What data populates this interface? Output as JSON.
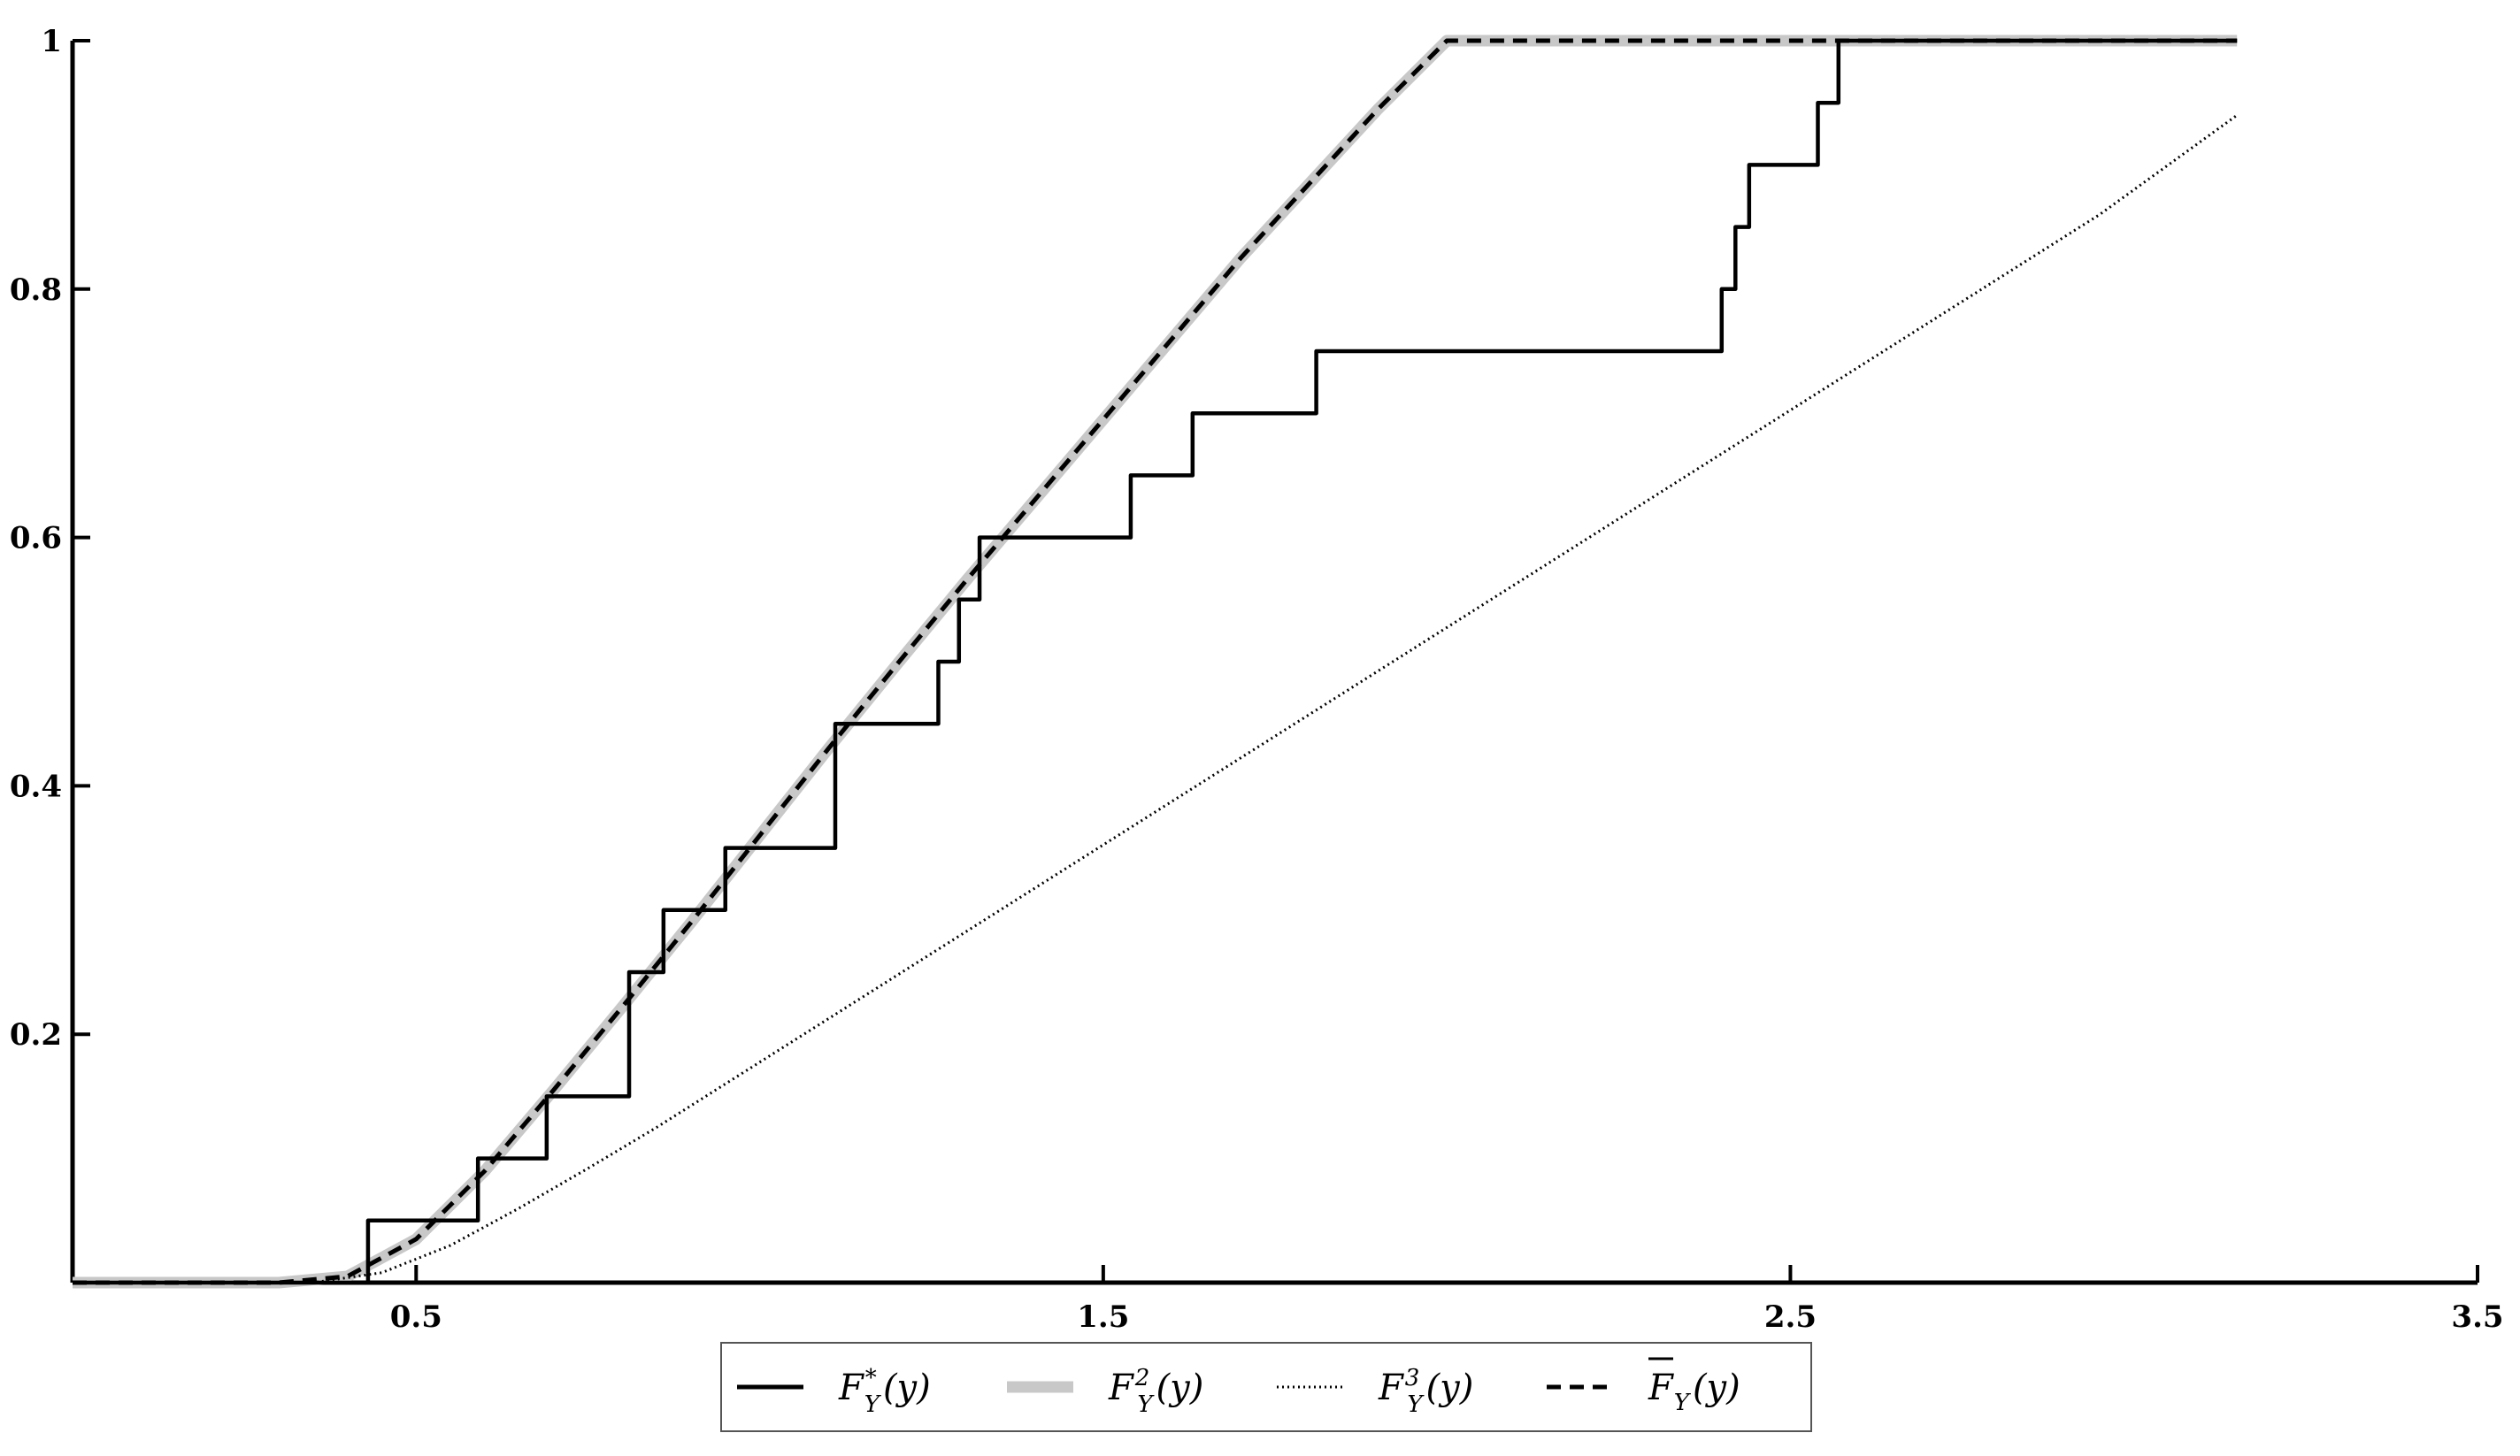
{
  "chart_data": {
    "type": "line",
    "xlim": [
      0,
      3.5
    ],
    "ylim": [
      0,
      1
    ],
    "x_ticks": [
      0.5,
      1.5,
      2.5,
      3.5
    ],
    "x_tick_labels": [
      "0.5",
      "1.5",
      "2.5",
      "3.5"
    ],
    "y_ticks": [
      0.2,
      0.4,
      0.6,
      0.8,
      1
    ],
    "y_tick_labels": [
      "0.2",
      "0.4",
      "0.6",
      "0.8",
      "1"
    ],
    "grid": false,
    "legend_position": "bottom-center",
    "series": [
      {
        "name": "F*_Y(y)",
        "style": "step",
        "color": "#000000",
        "x": [
          0,
          0.43,
          0.59,
          0.69,
          0.81,
          0.86,
          0.95,
          1.11,
          1.26,
          1.29,
          1.32,
          1.34,
          1.54,
          1.63,
          1.81,
          2.4,
          2.42,
          2.44,
          2.54,
          2.57,
          3.15
        ],
        "y": [
          0,
          0.05,
          0.1,
          0.15,
          0.25,
          0.3,
          0.35,
          0.45,
          0.5,
          0.55,
          0.6,
          0.6,
          0.65,
          0.7,
          0.75,
          0.8,
          0.85,
          0.9,
          0.95,
          1.0,
          1.0
        ]
      },
      {
        "name": "F²_Y(y)",
        "style": "solid-thick",
        "color": "#c8c8c8",
        "x": [
          0,
          0.3,
          0.4,
          0.5,
          0.6,
          0.7,
          0.8,
          0.9,
          1.0,
          1.1,
          1.2,
          1.3,
          1.4,
          1.5,
          1.6,
          1.7,
          1.8,
          1.9,
          2.0,
          2.1,
          2.2,
          2.3,
          2.4,
          2.5,
          2.56,
          2.7,
          2.9,
          3.15
        ],
        "y": [
          0,
          0.0,
          0.005,
          0.035,
          0.09,
          0.155,
          0.222,
          0.29,
          0.36,
          0.43,
          0.498,
          0.565,
          0.63,
          0.695,
          0.76,
          0.825,
          0.885,
          0.945,
          1.0,
          1.0,
          1.0,
          1.0,
          1.0,
          1.0,
          1.0,
          1.0,
          1.0,
          1.0
        ]
      },
      {
        "name": "F³_Y(y)",
        "style": "dotted",
        "color": "#000000",
        "x": [
          0,
          0.35,
          0.45,
          0.55,
          0.65,
          0.75,
          0.85,
          0.95,
          1.05,
          1.15,
          1.25,
          1.35,
          1.45,
          1.55,
          1.65,
          1.75,
          1.85,
          1.95,
          2.05,
          2.15,
          2.25,
          2.35,
          2.45,
          2.55,
          2.65,
          2.75,
          2.85,
          2.95,
          3.05,
          3.15
        ],
        "y": [
          0,
          0.0,
          0.008,
          0.03,
          0.06,
          0.092,
          0.125,
          0.16,
          0.195,
          0.23,
          0.265,
          0.3,
          0.335,
          0.37,
          0.405,
          0.44,
          0.475,
          0.51,
          0.545,
          0.58,
          0.615,
          0.65,
          0.685,
          0.72,
          0.755,
          0.79,
          0.825,
          0.86,
          0.9,
          0.94
        ]
      },
      {
        "name": "F̄_Y(y)",
        "style": "dashed",
        "color": "#000000",
        "x": [
          0,
          0.3,
          0.4,
          0.5,
          0.6,
          0.7,
          0.8,
          0.9,
          1.0,
          1.1,
          1.2,
          1.3,
          1.4,
          1.5,
          1.6,
          1.7,
          1.8,
          1.9,
          2.0,
          2.1,
          2.2,
          2.3,
          2.4,
          2.5,
          2.56,
          2.7,
          2.9,
          3.15
        ],
        "y": [
          0,
          0.0,
          0.005,
          0.035,
          0.09,
          0.155,
          0.222,
          0.29,
          0.36,
          0.43,
          0.498,
          0.565,
          0.63,
          0.695,
          0.76,
          0.825,
          0.885,
          0.945,
          1.0,
          1.0,
          1.0,
          1.0,
          1.0,
          1.0,
          1.0,
          1.0,
          1.0,
          1.0
        ]
      }
    ]
  },
  "legend": {
    "items": [
      {
        "base": "F",
        "sup": "*",
        "sub": "Y",
        "arg": "(y)",
        "bar": false
      },
      {
        "base": "F",
        "sup": "2",
        "sub": "Y",
        "arg": "(y)",
        "bar": false
      },
      {
        "base": "F",
        "sup": "3",
        "sub": "Y",
        "arg": "(y)",
        "bar": false
      },
      {
        "base": "F",
        "sup": "",
        "sub": "Y",
        "arg": "(y)",
        "bar": true
      }
    ]
  }
}
